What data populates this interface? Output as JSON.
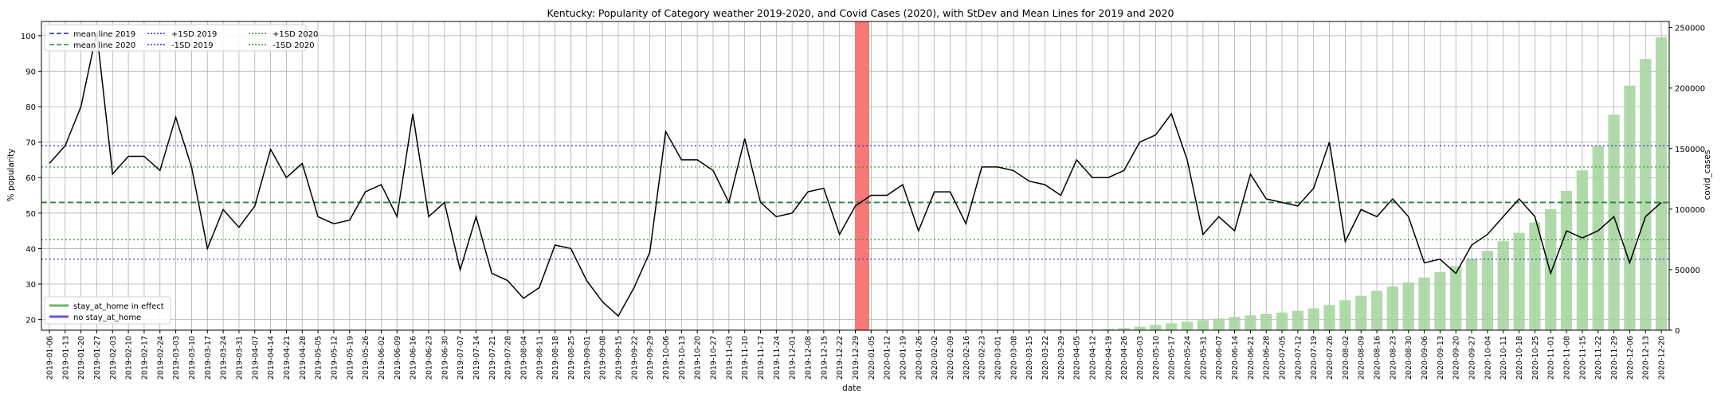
{
  "chart_data": {
    "type": "line",
    "title": "Kentucky: Popularity of Category weather 2019-2020, and Covid Cases (2020), with StDev and Mean Lines for 2019 and 2020",
    "xlabel": "date",
    "ylabel": "% popularity",
    "y2label": "covid_cases",
    "ylim": [
      17,
      104
    ],
    "y2lim": [
      0,
      255000
    ],
    "yticks": [
      20,
      30,
      40,
      50,
      60,
      70,
      80,
      90,
      100
    ],
    "y2ticks": [
      0,
      50000,
      100000,
      150000,
      200000,
      250000
    ],
    "grid": true,
    "legend_position": "upper-left",
    "lower_legend_position": "lower-left",
    "x": [
      "2019-01-06",
      "2019-01-13",
      "2019-01-20",
      "2019-01-27",
      "2019-02-03",
      "2019-02-10",
      "2019-02-17",
      "2019-02-24",
      "2019-03-03",
      "2019-03-10",
      "2019-03-17",
      "2019-03-24",
      "2019-03-31",
      "2019-04-07",
      "2019-04-14",
      "2019-04-21",
      "2019-04-28",
      "2019-05-05",
      "2019-05-12",
      "2019-05-19",
      "2019-05-26",
      "2019-06-02",
      "2019-06-09",
      "2019-06-16",
      "2019-06-23",
      "2019-06-30",
      "2019-07-07",
      "2019-07-14",
      "2019-07-21",
      "2019-07-28",
      "2019-08-04",
      "2019-08-11",
      "2019-08-18",
      "2019-08-25",
      "2019-09-01",
      "2019-09-08",
      "2019-09-15",
      "2019-09-22",
      "2019-09-29",
      "2019-10-06",
      "2019-10-13",
      "2019-10-20",
      "2019-10-27",
      "2019-11-03",
      "2019-11-10",
      "2019-11-17",
      "2019-11-24",
      "2019-12-01",
      "2019-12-08",
      "2019-12-15",
      "2019-12-22",
      "2019-12-29",
      "2020-01-05",
      "2020-01-12",
      "2020-01-19",
      "2020-01-26",
      "2020-02-02",
      "2020-02-09",
      "2020-02-16",
      "2020-02-23",
      "2020-03-01",
      "2020-03-08",
      "2020-03-15",
      "2020-03-22",
      "2020-03-29",
      "2020-04-05",
      "2020-04-12",
      "2020-04-19",
      "2020-04-26",
      "2020-05-03",
      "2020-05-10",
      "2020-05-17",
      "2020-05-24",
      "2020-05-31",
      "2020-06-07",
      "2020-06-14",
      "2020-06-21",
      "2020-06-28",
      "2020-07-05",
      "2020-07-12",
      "2020-07-19",
      "2020-07-26",
      "2020-08-02",
      "2020-08-09",
      "2020-08-16",
      "2020-08-23",
      "2020-08-30",
      "2020-09-06",
      "2020-09-13",
      "2020-09-20",
      "2020-09-27",
      "2020-10-04",
      "2020-10-11",
      "2020-10-18",
      "2020-10-25",
      "2020-11-01",
      "2020-11-08",
      "2020-11-15",
      "2020-11-22",
      "2020-11-29",
      "2020-12-06",
      "2020-12-13",
      "2020-12-20"
    ],
    "popularity": [
      64,
      69,
      80,
      101,
      61,
      66,
      66,
      62,
      77,
      63,
      40,
      51,
      46,
      52,
      68,
      60,
      64,
      49,
      47,
      48,
      56,
      58,
      49,
      78,
      49,
      53,
      34,
      49,
      33,
      31,
      26,
      29,
      41,
      40,
      31,
      25,
      21,
      29,
      39,
      73,
      65,
      65,
      62,
      53,
      71,
      53,
      49,
      50,
      56,
      57,
      44,
      52,
      55,
      55,
      58,
      45,
      56,
      56,
      47,
      63,
      63,
      62,
      59,
      58,
      55,
      65,
      60,
      60,
      62,
      70,
      72,
      78,
      65,
      44,
      49,
      45,
      61,
      54,
      53,
      52,
      57,
      70,
      42,
      51,
      49,
      54,
      49,
      36,
      37,
      33,
      41,
      44,
      49,
      54,
      49,
      33,
      45,
      43,
      45,
      49,
      36,
      49,
      53
    ],
    "covid_x_start": "2020-03-08",
    "covid_cases": [
      0,
      0,
      0,
      0,
      0,
      0,
      1000,
      1800,
      2900,
      4400,
      5700,
      6900,
      8400,
      9600,
      11000,
      12300,
      13400,
      14600,
      16000,
      18000,
      20800,
      24800,
      28500,
      32500,
      36000,
      39500,
      43500,
      48000,
      53000,
      59000,
      65500,
      73500,
      80500,
      89000,
      100000,
      115000,
      132000,
      152000,
      178000,
      202000,
      224000,
      242000
    ],
    "covid_label_value": 242000,
    "mean_2019": 53,
    "mean_2020": 53,
    "plus_1sd_2019": 69,
    "minus_1sd_2019": 37,
    "plus_1sd_2020": 63,
    "minus_1sd_2020": 42.5,
    "highlight_date": "2020-01-01",
    "colors": {
      "popularity": "#000000",
      "covid_bar": "#a9d6a1",
      "mean_2019": "#1f1fa8",
      "mean_2020": "#2e8b2e",
      "sd_2019": "#2a2ad6",
      "sd_2020": "#2e9a2e",
      "highlight": "#f87777"
    },
    "legend": [
      {
        "label": "mean line 2019",
        "style": "dashed",
        "color": "#1f1fa8"
      },
      {
        "label": "mean line 2020",
        "style": "dashed",
        "color": "#2e8b2e"
      },
      {
        "label": "+1SD 2019",
        "style": "dotted",
        "color": "#2a2ad6"
      },
      {
        "label": "-1SD 2019",
        "style": "dotted",
        "color": "#2a2ad6"
      },
      {
        "label": "+1SD 2020",
        "style": "dotted",
        "color": "#2e9a2e"
      },
      {
        "label": "-1SD 2020",
        "style": "dotted",
        "color": "#2e9a2e"
      }
    ],
    "legend2": [
      {
        "label": "stay_at_home in effect",
        "color": "#6ab86a"
      },
      {
        "label": "no stay_at_home",
        "color": "#5b5bd6"
      }
    ]
  }
}
